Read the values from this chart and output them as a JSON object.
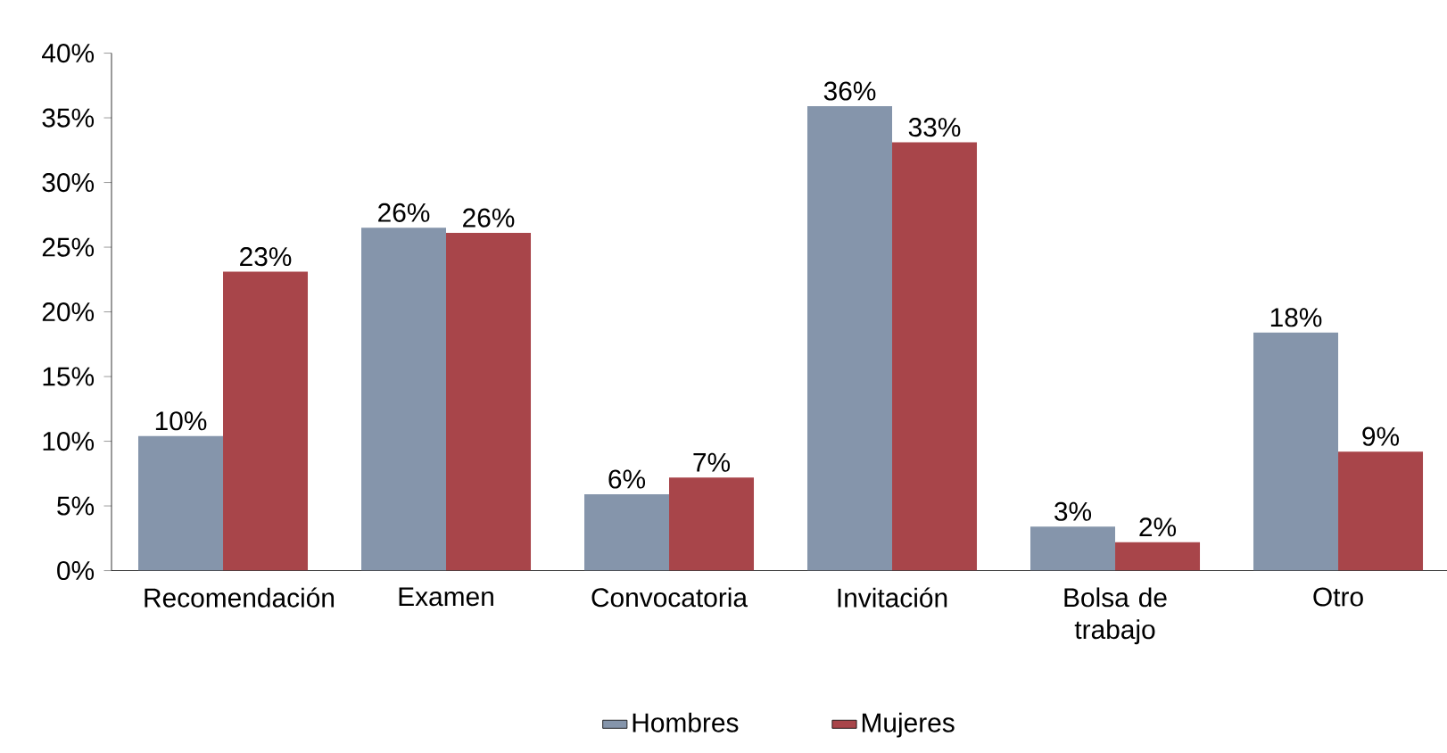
{
  "chart_data": {
    "type": "bar",
    "categories": [
      "Recomendación",
      "Examen",
      "Convocatoria",
      "Invitación",
      "Bolsa de trabajo",
      "Otro"
    ],
    "series": [
      {
        "name": "Hombres",
        "color": "#8595ab",
        "values": [
          10.4,
          26.5,
          5.9,
          35.9,
          3.4,
          18.4
        ],
        "value_labels": [
          "10%",
          "26%",
          "6%",
          "36%",
          "3%",
          "18%"
        ]
      },
      {
        "name": "Mujeres",
        "color": "#a8454a",
        "values": [
          23.1,
          26.1,
          7.2,
          33.1,
          2.2,
          9.2
        ],
        "value_labels": [
          "23%",
          "26%",
          "7%",
          "33%",
          "2%",
          "9%"
        ]
      }
    ],
    "ylim": [
      0,
      40
    ],
    "yticks": [
      {
        "value": 0,
        "label": "0%"
      },
      {
        "value": 5,
        "label": "5%"
      },
      {
        "value": 10,
        "label": "10%"
      },
      {
        "value": 15,
        "label": "15%"
      },
      {
        "value": 20,
        "label": "20%"
      },
      {
        "value": 25,
        "label": "25%"
      },
      {
        "value": 30,
        "label": "30%"
      },
      {
        "value": 35,
        "label": "35%"
      },
      {
        "value": 40,
        "label": "40%"
      }
    ],
    "grid": false,
    "legend": "bottom"
  }
}
